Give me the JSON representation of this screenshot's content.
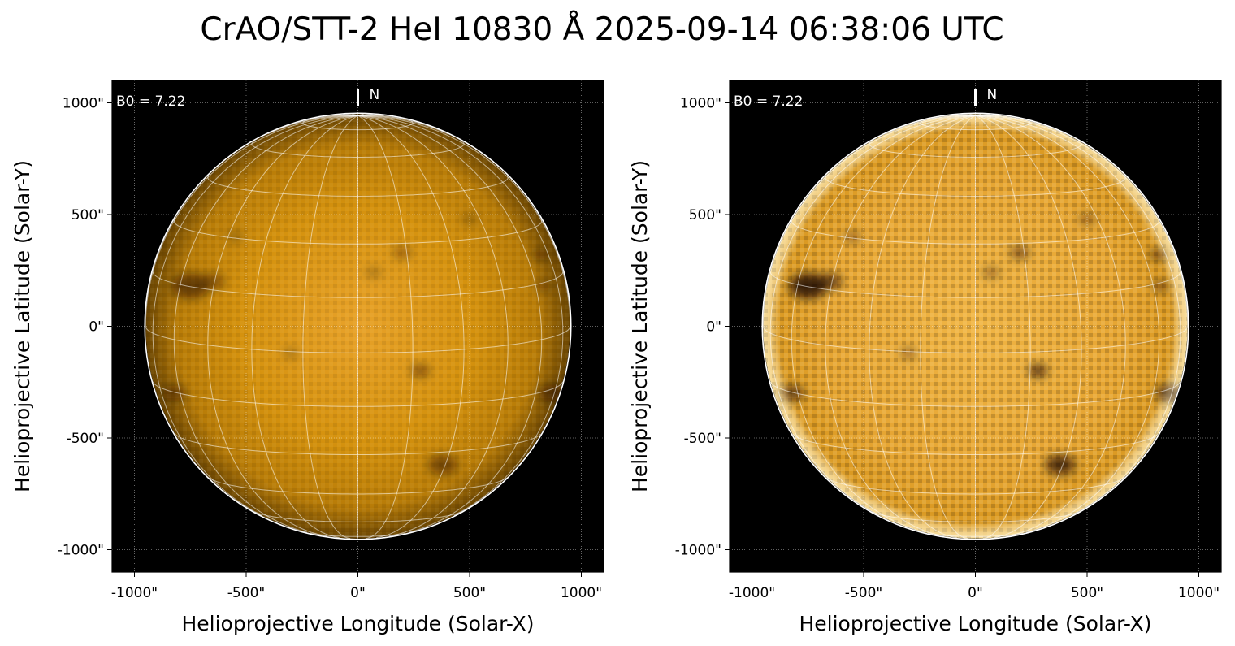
{
  "figure": {
    "title": "CrAO/STT-2 HeI 10830 Å 2025-09-14 06:38:06 UTC"
  },
  "colors": {
    "background": "#000000",
    "sun_base_left": "#c98a10",
    "sun_base_right": "#e3a530",
    "limb": "#ffffff",
    "grid": "#ffffff"
  },
  "panels": [
    {
      "id": "left",
      "b0_label": "B0 = 7.22",
      "north_label": "N",
      "xlabel": "Helioprojective Longitude (Solar-X)",
      "ylabel": "Helioprojective Latitude (Solar-Y)",
      "enhanced": false
    },
    {
      "id": "right",
      "b0_label": "B0 = 7.22",
      "north_label": "N",
      "xlabel": "Helioprojective Longitude (Solar-X)",
      "ylabel": "Helioprojective Latitude (Solar-Y)",
      "enhanced": true
    }
  ],
  "axes": {
    "x_range": [
      -1100,
      1100
    ],
    "y_range": [
      -1100,
      1100
    ],
    "x_ticks": [
      -1000,
      -500,
      0,
      500,
      1000
    ],
    "y_ticks": [
      1000,
      500,
      0,
      -500,
      -1000
    ],
    "x_tick_labels": [
      "-1000\"",
      "-500\"",
      "0\"",
      "500\"",
      "1000\""
    ],
    "y_tick_labels": [
      "1000\"",
      "500\"",
      "0\"",
      "-500\"",
      "-1000\""
    ],
    "grid": true
  },
  "sun": {
    "radius_arcsec": 950,
    "b0_deg": 7.22,
    "grid_step_deg": 15
  },
  "dark_features": [
    {
      "x": -750,
      "y": 180,
      "r": 70,
      "strength": 0.8
    },
    {
      "x": -650,
      "y": 200,
      "r": 45,
      "strength": 0.6
    },
    {
      "x": 200,
      "y": 330,
      "r": 35,
      "strength": 0.5
    },
    {
      "x": 70,
      "y": 240,
      "r": 30,
      "strength": 0.4
    },
    {
      "x": 820,
      "y": 320,
      "r": 30,
      "strength": 0.6
    },
    {
      "x": 830,
      "y": 180,
      "r": 30,
      "strength": 0.5
    },
    {
      "x": 280,
      "y": -200,
      "r": 35,
      "strength": 0.7
    },
    {
      "x": -820,
      "y": -300,
      "r": 45,
      "strength": 0.6
    },
    {
      "x": 380,
      "y": -620,
      "r": 55,
      "strength": 0.7
    },
    {
      "x": -300,
      "y": -120,
      "r": 30,
      "strength": 0.4
    },
    {
      "x": 870,
      "y": -300,
      "r": 50,
      "strength": 0.7
    },
    {
      "x": -550,
      "y": 400,
      "r": 30,
      "strength": 0.4
    },
    {
      "x": 500,
      "y": 480,
      "r": 30,
      "strength": 0.4
    }
  ]
}
